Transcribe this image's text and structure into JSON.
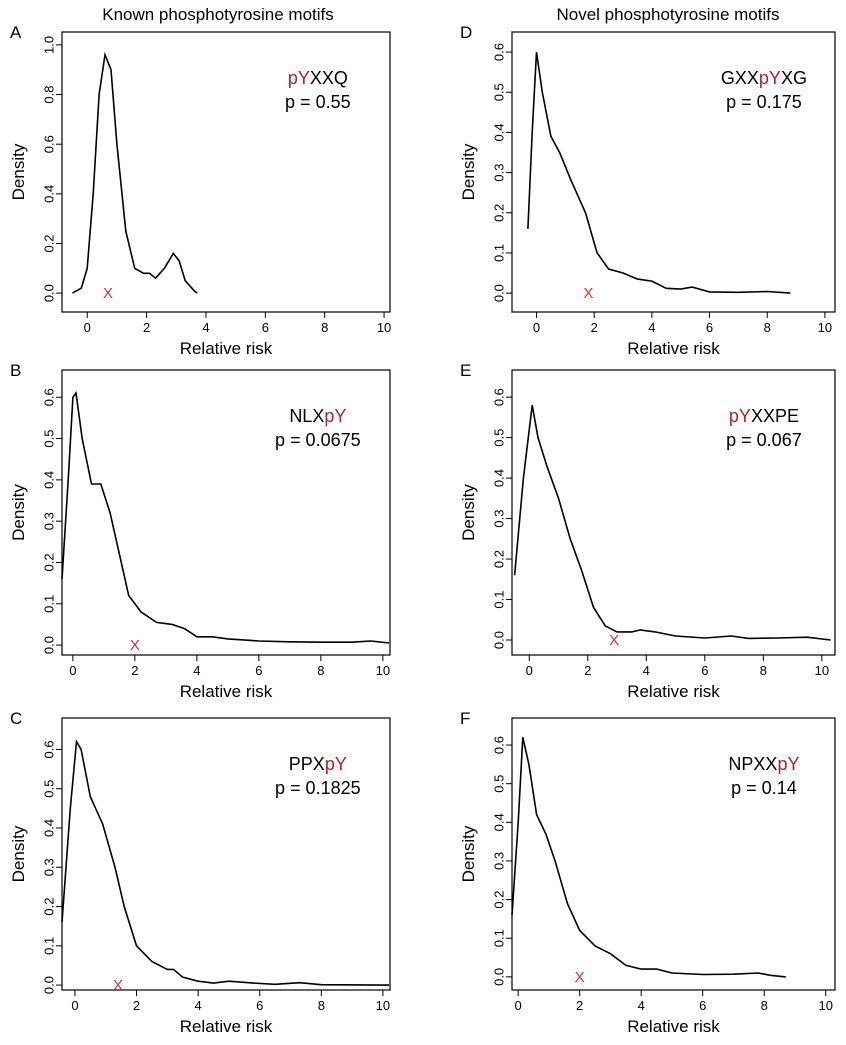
{
  "column_titles": [
    "Known phosphotyrosine motifs",
    "Novel phosphotyrosine motifs"
  ],
  "chart_data": [
    {
      "type": "line",
      "panel": "A",
      "motif": [
        {
          "text": "pY",
          "color": "#b22222"
        },
        {
          "text": "XXQ",
          "color": "#000000"
        }
      ],
      "p_label": "p = 0.55",
      "x_label": "Relative risk",
      "y_label": "Density",
      "color": "#000000",
      "x": [
        -0.5,
        -0.2,
        0,
        0.2,
        0.4,
        0.6,
        0.8,
        1.0,
        1.3,
        1.6,
        1.9,
        2.1,
        2.3,
        2.6,
        2.9,
        3.1,
        3.3,
        3.6,
        3.7
      ],
      "values": [
        0,
        0.02,
        0.1,
        0.4,
        0.8,
        0.96,
        0.9,
        0.6,
        0.25,
        0.1,
        0.08,
        0.08,
        0.06,
        0.1,
        0.16,
        0.13,
        0.05,
        0.01,
        0
      ],
      "marker": {
        "x": 0.7,
        "label": "X",
        "color": "#e03030"
      },
      "xlim": [
        -0.85,
        10.2
      ],
      "ylim": [
        -0.076,
        1.052
      ],
      "xticks": [
        0,
        2,
        4,
        6,
        8,
        10
      ],
      "yticks": [
        {
          "value": 0,
          "label": "0.0"
        },
        0.2,
        0.4,
        0.6,
        0.8,
        {
          "value": 1,
          "label": "1.0"
        }
      ]
    },
    {
      "type": "line",
      "panel": "B",
      "motif": [
        {
          "text": "NLX",
          "color": "#000000"
        },
        {
          "text": "pY",
          "color": "#b22222"
        }
      ],
      "p_label": "p = 0.0675",
      "x_label": "Relative risk",
      "y_label": "Density",
      "color": "#000000",
      "x": [
        -0.35,
        -0.15,
        0,
        0.1,
        0.3,
        0.6,
        0.9,
        1.2,
        1.5,
        1.8,
        2.2,
        2.7,
        3.2,
        3.6,
        4,
        4.5,
        5,
        6,
        7,
        8,
        9,
        9.6,
        10.2
      ],
      "values": [
        0.16,
        0.4,
        0.6,
        0.61,
        0.5,
        0.39,
        0.39,
        0.32,
        0.22,
        0.12,
        0.08,
        0.055,
        0.05,
        0.04,
        0.02,
        0.02,
        0.015,
        0.01,
        0.008,
        0.007,
        0.007,
        0.01,
        0.005
      ],
      "marker": {
        "x": 2,
        "label": "X",
        "color": "#e03030"
      },
      "xlim": [
        -0.35,
        10.23
      ],
      "ylim": [
        -0.024,
        0.666
      ],
      "xticks": [
        0,
        2,
        4,
        6,
        8,
        10
      ],
      "yticks": [
        {
          "value": 0,
          "label": "0.0"
        },
        0.1,
        0.2,
        0.3,
        0.4,
        0.5,
        0.6
      ]
    },
    {
      "type": "line",
      "panel": "C",
      "motif": [
        {
          "text": "PPX",
          "color": "#000000"
        },
        {
          "text": "pY",
          "color": "#b22222"
        }
      ],
      "p_label": "p = 0.1825",
      "x_label": "Relative risk",
      "y_label": "Density",
      "color": "#000000",
      "x": [
        -0.42,
        -0.15,
        0.05,
        0.2,
        0.5,
        0.9,
        1.3,
        1.6,
        2,
        2.5,
        3,
        3.2,
        3.5,
        4,
        4.5,
        5,
        5.8,
        6.5,
        7.3,
        8,
        10.2
      ],
      "values": [
        0.16,
        0.45,
        0.62,
        0.6,
        0.48,
        0.41,
        0.3,
        0.2,
        0.1,
        0.06,
        0.04,
        0.04,
        0.02,
        0.01,
        0.005,
        0.01,
        0.005,
        0.002,
        0.006,
        0.001,
        0
      ],
      "marker": {
        "x": 1.4,
        "label": "X",
        "color": "#e03030"
      },
      "xlim": [
        -0.42,
        10.23
      ],
      "ylim": [
        -0.0125,
        0.68
      ],
      "xticks": [
        0,
        2,
        4,
        6,
        8,
        10
      ],
      "yticks": [
        {
          "value": 0,
          "label": "0.0"
        },
        0.1,
        0.2,
        0.3,
        0.4,
        0.5,
        0.6
      ]
    },
    {
      "type": "line",
      "panel": "D",
      "motif": [
        {
          "text": "GXX",
          "color": "#000000"
        },
        {
          "text": "pY",
          "color": "#b22222"
        },
        {
          "text": "XG",
          "color": "#000000"
        }
      ],
      "p_label": "p =  0.175",
      "x_label": "Relative risk",
      "y_label": "Density",
      "color": "#000000",
      "x": [
        -0.3,
        -0.15,
        0,
        0.2,
        0.5,
        0.8,
        1.2,
        1.7,
        2.1,
        2.5,
        3,
        3.5,
        4,
        4.5,
        5,
        5.4,
        6,
        7,
        8,
        8.8
      ],
      "values": [
        0.16,
        0.4,
        0.6,
        0.5,
        0.39,
        0.35,
        0.28,
        0.2,
        0.1,
        0.06,
        0.05,
        0.035,
        0.03,
        0.012,
        0.01,
        0.015,
        0.003,
        0.002,
        0.004,
        0
      ],
      "marker": {
        "x": 1.8,
        "label": "X",
        "color": "#e03030"
      },
      "xlim": [
        -0.85,
        10.35
      ],
      "ylim": [
        -0.047,
        0.65
      ],
      "xticks": [
        0,
        2,
        4,
        6,
        8,
        10
      ],
      "yticks": [
        {
          "value": 0,
          "label": "0.0"
        },
        0.1,
        0.2,
        0.3,
        0.4,
        0.5,
        0.6
      ]
    },
    {
      "type": "line",
      "panel": "E",
      "motif": [
        {
          "text": "pY",
          "color": "#b22222"
        },
        {
          "text": "XXPE",
          "color": "#000000"
        }
      ],
      "p_label": "p =  0.067",
      "x_label": "Relative risk",
      "y_label": "Density",
      "color": "#000000",
      "x": [
        -0.5,
        -0.2,
        0.1,
        0.3,
        0.6,
        1,
        1.4,
        1.8,
        2.2,
        2.6,
        3,
        3.5,
        3.8,
        4.3,
        5,
        6,
        6.9,
        7.5,
        8.5,
        9.5,
        10.3
      ],
      "values": [
        0.16,
        0.4,
        0.58,
        0.5,
        0.43,
        0.35,
        0.25,
        0.17,
        0.08,
        0.035,
        0.02,
        0.02,
        0.025,
        0.02,
        0.01,
        0.005,
        0.01,
        0.004,
        0.005,
        0.007,
        0
      ],
      "marker": {
        "x": 2.9,
        "label": "X",
        "color": "#e03030"
      },
      "xlim": [
        -0.59,
        10.45
      ],
      "ylim": [
        -0.037,
        0.667
      ],
      "xticks": [
        0,
        2,
        4,
        6,
        8,
        10
      ],
      "yticks": [
        {
          "value": 0,
          "label": "0.0"
        },
        0.1,
        0.2,
        0.3,
        0.4,
        0.5,
        0.6
      ]
    },
    {
      "type": "line",
      "panel": "F",
      "motif": [
        {
          "text": "NPXX",
          "color": "#000000"
        },
        {
          "text": "pY",
          "color": "#b22222"
        }
      ],
      "p_label": "p = 0.14",
      "x_label": "Relative risk",
      "y_label": "Density",
      "color": "#000000",
      "x": [
        -0.2,
        0,
        0.15,
        0.35,
        0.6,
        0.9,
        1.2,
        1.6,
        2,
        2.5,
        3,
        3.5,
        4,
        4.5,
        5,
        6,
        7,
        7.8,
        8.2,
        8.7
      ],
      "values": [
        0.16,
        0.4,
        0.62,
        0.55,
        0.42,
        0.37,
        0.3,
        0.19,
        0.12,
        0.08,
        0.06,
        0.03,
        0.02,
        0.02,
        0.01,
        0.006,
        0.007,
        0.01,
        0.004,
        0
      ],
      "marker": {
        "x": 2,
        "label": "X",
        "color": "#e03030"
      },
      "xlim": [
        -0.2,
        10.3
      ],
      "ylim": [
        -0.034,
        0.67
      ],
      "xticks": [
        0,
        2,
        4,
        6,
        8,
        10
      ],
      "yticks": [
        {
          "value": 0,
          "label": "0.0"
        },
        0.1,
        0.2,
        0.3,
        0.4,
        0.5,
        0.6
      ]
    }
  ]
}
